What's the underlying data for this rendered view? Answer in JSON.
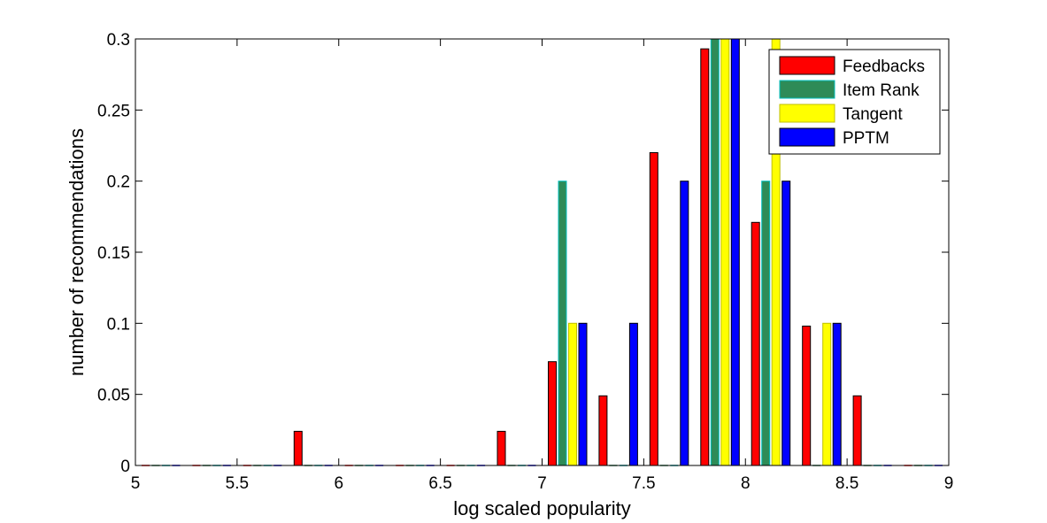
{
  "chart_data": {
    "type": "bar",
    "xlabel": "log scaled popularity",
    "ylabel": "number of recommendations",
    "xlim": [
      5,
      9
    ],
    "ylim": [
      0,
      0.3
    ],
    "x_ticks": [
      "5",
      "5.5",
      "6",
      "6.5",
      "7",
      "7.5",
      "8",
      "8.5",
      "9"
    ],
    "y_ticks": [
      "0",
      "0.05",
      "0.1",
      "0.15",
      "0.2",
      "0.25",
      "0.3"
    ],
    "grid": false,
    "legend_position": "top-right",
    "bin_centers": [
      5.125,
      5.375,
      5.625,
      5.875,
      6.125,
      6.375,
      6.625,
      6.875,
      7.125,
      7.375,
      7.625,
      7.875,
      8.125,
      8.375,
      8.625,
      8.875
    ],
    "series": [
      {
        "name": "Feedbacks",
        "color": "#ff0000",
        "edge": "#000000",
        "values": [
          0,
          0,
          0,
          0.024,
          0,
          0,
          0,
          0.024,
          0.073,
          0.049,
          0.22,
          0.293,
          0.171,
          0.098,
          0.049,
          0
        ]
      },
      {
        "name": "Item Rank",
        "color": "#2e8b57",
        "edge": "#00bfbf",
        "values": [
          0,
          0,
          0,
          0,
          0,
          0,
          0,
          0,
          0.2,
          0,
          0,
          0.3,
          0.2,
          0,
          0,
          0
        ]
      },
      {
        "name": "Tangent",
        "color": "#ffff00",
        "edge": "#bfbf00",
        "values": [
          0,
          0,
          0,
          0,
          0,
          0,
          0,
          0,
          0.1,
          0,
          0,
          0.3,
          0.3,
          0.1,
          0,
          0
        ]
      },
      {
        "name": "PPTM",
        "color": "#0000ff",
        "edge": "#000000",
        "values": [
          0,
          0,
          0,
          0,
          0,
          0,
          0,
          0,
          0.1,
          0.1,
          0.2,
          0.3,
          0.2,
          0.1,
          0,
          0
        ]
      }
    ]
  }
}
